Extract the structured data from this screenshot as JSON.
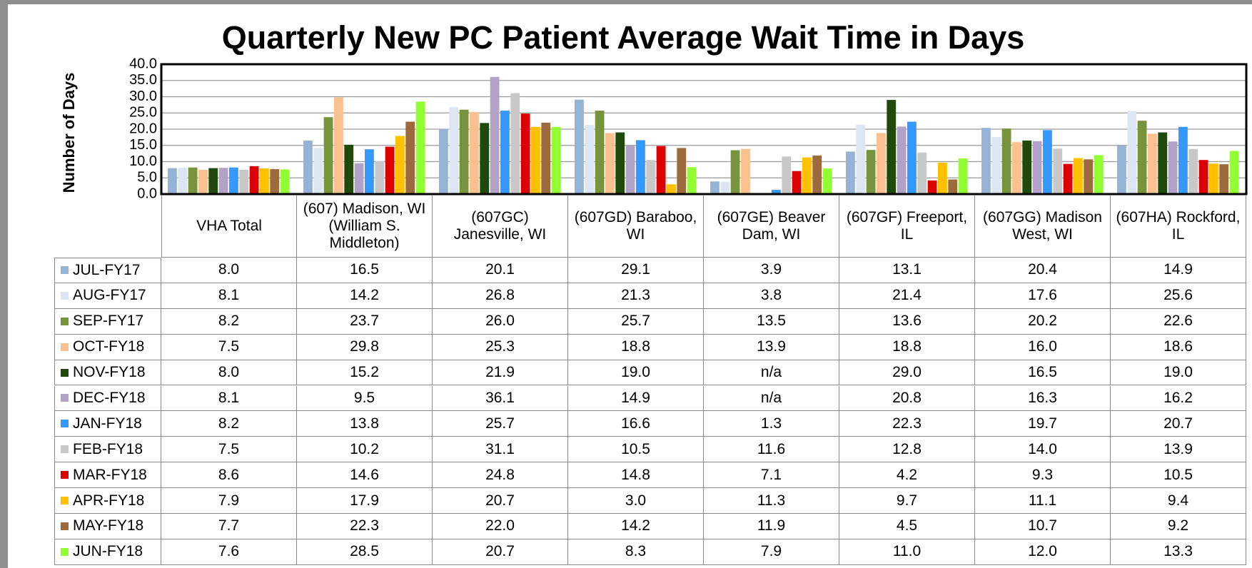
{
  "chart_data": {
    "type": "bar",
    "title": "Quarterly New PC Patient Average Wait Time in Days",
    "y_label": "Number of Days",
    "categories": [
      "VHA Total",
      "(607) Madison, WI (William S. Middleton)",
      "(607GC) Janesville, WI",
      "(607GD) Baraboo, WI",
      "(607GE) Beaver Dam, WI",
      "(607GF) Freeport, IL",
      "(607GG) Madison West, WI",
      "(607HA) Rockford, IL"
    ],
    "ylim": [
      0,
      40
    ],
    "yticks": [
      {
        "value": 0,
        "label": "0.0"
      },
      {
        "value": 5,
        "label": "5.0"
      },
      {
        "value": 10,
        "label": "10.0"
      },
      {
        "value": 15,
        "label": "15.0"
      },
      {
        "value": 20,
        "label": "20.0"
      },
      {
        "value": 25,
        "label": "25.0"
      },
      {
        "value": 30,
        "label": "30.0"
      },
      {
        "value": 35,
        "label": "35.0"
      },
      {
        "value": 40,
        "label": "40.0"
      }
    ],
    "grid": true,
    "series": [
      {
        "name": "JUL-FY17",
        "color": "#95b3d7",
        "values": [
          8.0,
          16.5,
          20.1,
          29.1,
          3.9,
          13.1,
          20.4,
          14.9
        ],
        "value_labels": [
          "8.0",
          "16.5",
          "20.1",
          "29.1",
          "3.9",
          "13.1",
          "20.4",
          "14.9"
        ]
      },
      {
        "name": "AUG-FY17",
        "color": "#dce6f2",
        "values": [
          8.1,
          14.2,
          26.8,
          21.3,
          3.8,
          21.4,
          17.6,
          25.6
        ],
        "value_labels": [
          "8.1",
          "14.2",
          "26.8",
          "21.3",
          "3.8",
          "21.4",
          "17.6",
          "25.6"
        ]
      },
      {
        "name": "SEP-FY17",
        "color": "#77933c",
        "values": [
          8.2,
          23.7,
          26.0,
          25.7,
          13.5,
          13.6,
          20.2,
          22.6
        ],
        "value_labels": [
          "8.2",
          "23.7",
          "26.0",
          "25.7",
          "13.5",
          "13.6",
          "20.2",
          "22.6"
        ]
      },
      {
        "name": "OCT-FY18",
        "color": "#fac090",
        "values": [
          7.5,
          29.8,
          25.3,
          18.8,
          13.9,
          18.8,
          16.0,
          18.6
        ],
        "value_labels": [
          "7.5",
          "29.8",
          "25.3",
          "18.8",
          "13.9",
          "18.8",
          "16.0",
          "18.6"
        ]
      },
      {
        "name": "NOV-FY18",
        "color": "#1f4a0c",
        "values": [
          8.0,
          15.2,
          21.9,
          19.0,
          null,
          29.0,
          16.5,
          19.0
        ],
        "value_labels": [
          "8.0",
          "15.2",
          "21.9",
          "19.0",
          "n/a",
          "29.0",
          "16.5",
          "19.0"
        ]
      },
      {
        "name": "DEC-FY18",
        "color": "#b3a2c7",
        "values": [
          8.1,
          9.5,
          36.1,
          14.9,
          null,
          20.8,
          16.3,
          16.2
        ],
        "value_labels": [
          "8.1",
          "9.5",
          "36.1",
          "14.9",
          "n/a",
          "20.8",
          "16.3",
          "16.2"
        ]
      },
      {
        "name": "JAN-FY18",
        "color": "#3399ff",
        "values": [
          8.2,
          13.8,
          25.7,
          16.6,
          1.3,
          22.3,
          19.7,
          20.7
        ],
        "value_labels": [
          "8.2",
          "13.8",
          "25.7",
          "16.6",
          "1.3",
          "22.3",
          "19.7",
          "20.7"
        ]
      },
      {
        "name": "FEB-FY18",
        "color": "#c8c8c8",
        "values": [
          7.5,
          10.2,
          31.1,
          10.5,
          11.6,
          12.8,
          14.0,
          13.9
        ],
        "value_labels": [
          "7.5",
          "10.2",
          "31.1",
          "10.5",
          "11.6",
          "12.8",
          "14.0",
          "13.9"
        ]
      },
      {
        "name": "MAR-FY18",
        "color": "#dd0000",
        "values": [
          8.6,
          14.6,
          24.8,
          14.8,
          7.1,
          4.2,
          9.3,
          10.5
        ],
        "value_labels": [
          "8.6",
          "14.6",
          "24.8",
          "14.8",
          "7.1",
          "4.2",
          "9.3",
          "10.5"
        ]
      },
      {
        "name": "APR-FY18",
        "color": "#ffc000",
        "values": [
          7.9,
          17.9,
          20.7,
          3.0,
          11.3,
          9.7,
          11.1,
          9.4
        ],
        "value_labels": [
          "7.9",
          "17.9",
          "20.7",
          "3.0",
          "11.3",
          "9.7",
          "11.1",
          "9.4"
        ]
      },
      {
        "name": "MAY-FY18",
        "color": "#9c6a3c",
        "values": [
          7.7,
          22.3,
          22.0,
          14.2,
          11.9,
          4.5,
          10.7,
          9.2
        ],
        "value_labels": [
          "7.7",
          "22.3",
          "22.0",
          "14.2",
          "11.9",
          "4.5",
          "10.7",
          "9.2"
        ]
      },
      {
        "name": "JUN-FY18",
        "color": "#92ff33",
        "values": [
          7.6,
          28.5,
          20.7,
          8.3,
          7.9,
          11.0,
          12.0,
          13.3
        ],
        "value_labels": [
          "7.6",
          "28.5",
          "20.7",
          "8.3",
          "7.9",
          "11.0",
          "12.0",
          "13.3"
        ]
      }
    ]
  }
}
